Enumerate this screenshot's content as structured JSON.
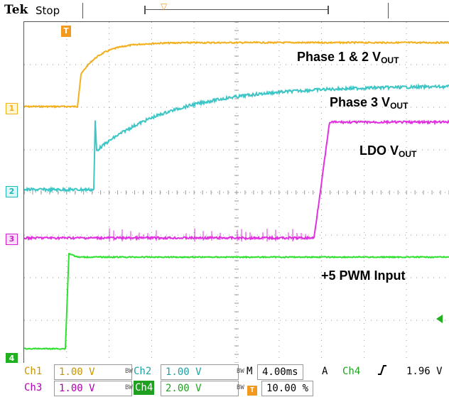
{
  "header": {
    "brand": "Tek",
    "run_status": "Stop"
  },
  "markers": {
    "trigger_position": "T",
    "ch1": "1",
    "ch2": "2",
    "ch3": "3",
    "ch4": "4"
  },
  "traces": {
    "phase12": {
      "label": "Phase 1 & 2 V",
      "sub": "OUT",
      "color": "#f2b01e"
    },
    "phase3": {
      "label": "Phase 3 V",
      "sub": "OUT",
      "color": "#3ec6c6"
    },
    "ldo": {
      "label": "LDO V",
      "sub": "OUT",
      "color": "#e030e0"
    },
    "pwm": {
      "label": "+5 PWM Input",
      "color": "#30e030"
    }
  },
  "status": {
    "ch1_label": "Ch1",
    "ch1_scale": "1.00 V",
    "ch2_label": "Ch2",
    "ch2_scale": "1.00 V",
    "ch3_label": "Ch3",
    "ch3_scale": "1.00 V",
    "ch4_label": "Ch4",
    "ch4_scale": "2.00 V",
    "bw_icon": "BW",
    "horizontal_label": "M",
    "timebase": "4.00ms",
    "trigger_mode": "A",
    "trigger_source": "Ch4",
    "trigger_slope_icon": "rising-edge-icon",
    "trigger_level": "1.96 V",
    "trigger_position_pct": "10.00 %"
  }
}
